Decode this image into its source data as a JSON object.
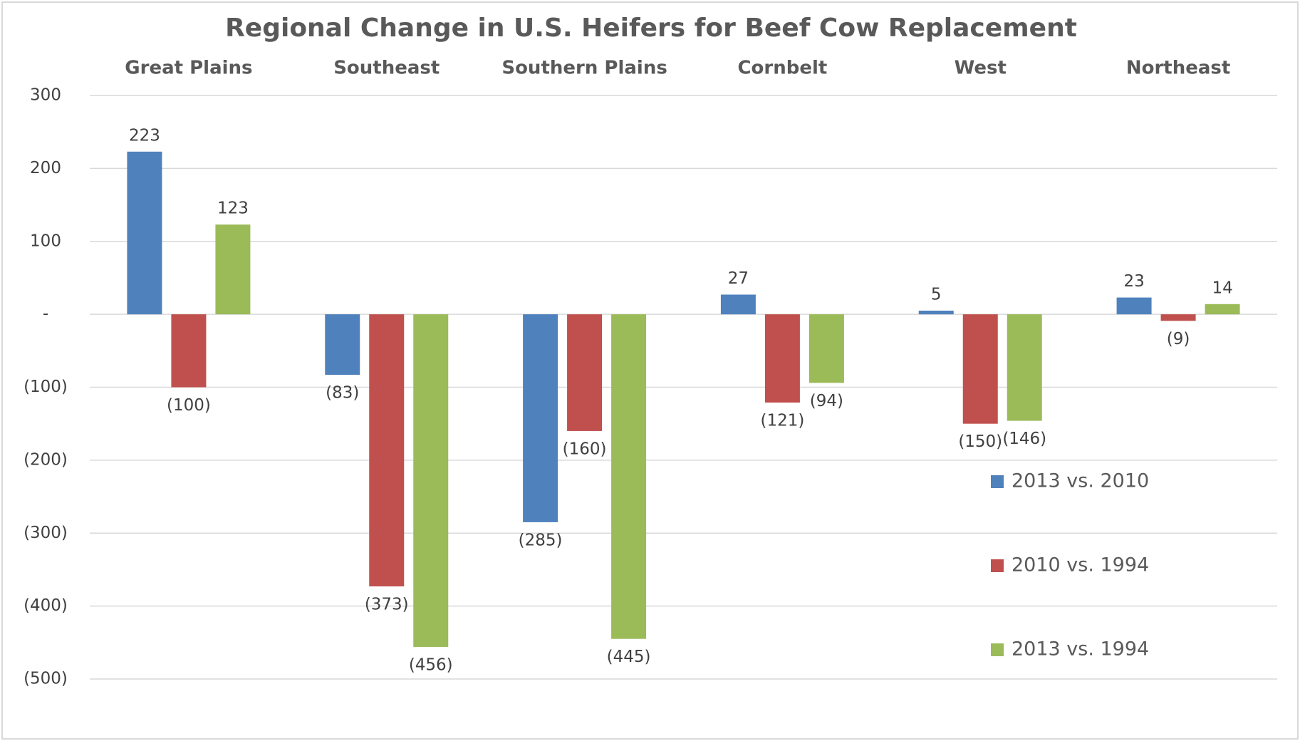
{
  "chart_data": {
    "type": "bar",
    "title": "Regional Change in U.S. Heifers for Beef Cow Replacement",
    "categories": [
      "Great Plains",
      "Southeast",
      "Southern Plains",
      "Cornbelt",
      "West",
      "Northeast"
    ],
    "series": [
      {
        "name": "2013 vs. 2010",
        "color": "#4f81bd",
        "values": [
          223,
          -83,
          -285,
          27,
          5,
          23
        ],
        "value_labels": [
          "223",
          "(83)",
          "(285)",
          "27",
          "5",
          "23"
        ]
      },
      {
        "name": "2010 vs. 1994",
        "color": "#c0504d",
        "values": [
          -100,
          -373,
          -160,
          -121,
          -150,
          -9
        ],
        "value_labels": [
          "(100)",
          "(373)",
          "(160)",
          "(121)",
          "(150)",
          "(9)"
        ]
      },
      {
        "name": "2013 vs. 1994",
        "color": "#9bbb59",
        "values": [
          123,
          -456,
          -445,
          -94,
          -146,
          14
        ],
        "value_labels": [
          "123",
          "(456)",
          "(445)",
          "(94)",
          "(146)",
          "14"
        ]
      }
    ],
    "ylim": [
      -500,
      300
    ],
    "yticks": [
      300,
      200,
      100,
      {
        "value": 0,
        "label": "-"
      },
      {
        "value": -100,
        "label": "(100)"
      },
      {
        "value": -200,
        "label": "(200)"
      },
      {
        "value": -300,
        "label": "(300)"
      },
      {
        "value": -400,
        "label": "(400)"
      },
      {
        "value": -500,
        "label": "(500)"
      }
    ],
    "grid": true
  }
}
